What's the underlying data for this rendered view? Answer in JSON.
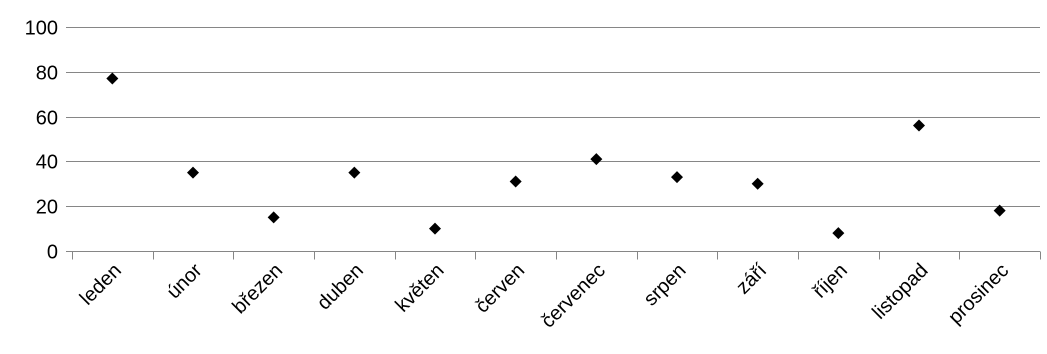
{
  "chart_data": {
    "type": "scatter",
    "marker": "diamond",
    "marker_color": "#000000",
    "categories": [
      "leden",
      "únor",
      "březen",
      "duben",
      "květen",
      "červen",
      "červenec",
      "srpen",
      "září",
      "říjen",
      "listopad",
      "prosinec"
    ],
    "values": [
      77,
      35,
      15,
      35,
      10,
      31,
      41,
      33,
      30,
      8,
      56,
      18
    ],
    "ylim": [
      0,
      100
    ],
    "yticks": [
      0,
      20,
      40,
      60,
      80,
      100
    ],
    "ytick_labels": [
      "0",
      "20",
      "40",
      "60",
      "80",
      "100"
    ],
    "grid": true,
    "legend": "none",
    "title": "",
    "xlabel": "",
    "ylabel": ""
  }
}
